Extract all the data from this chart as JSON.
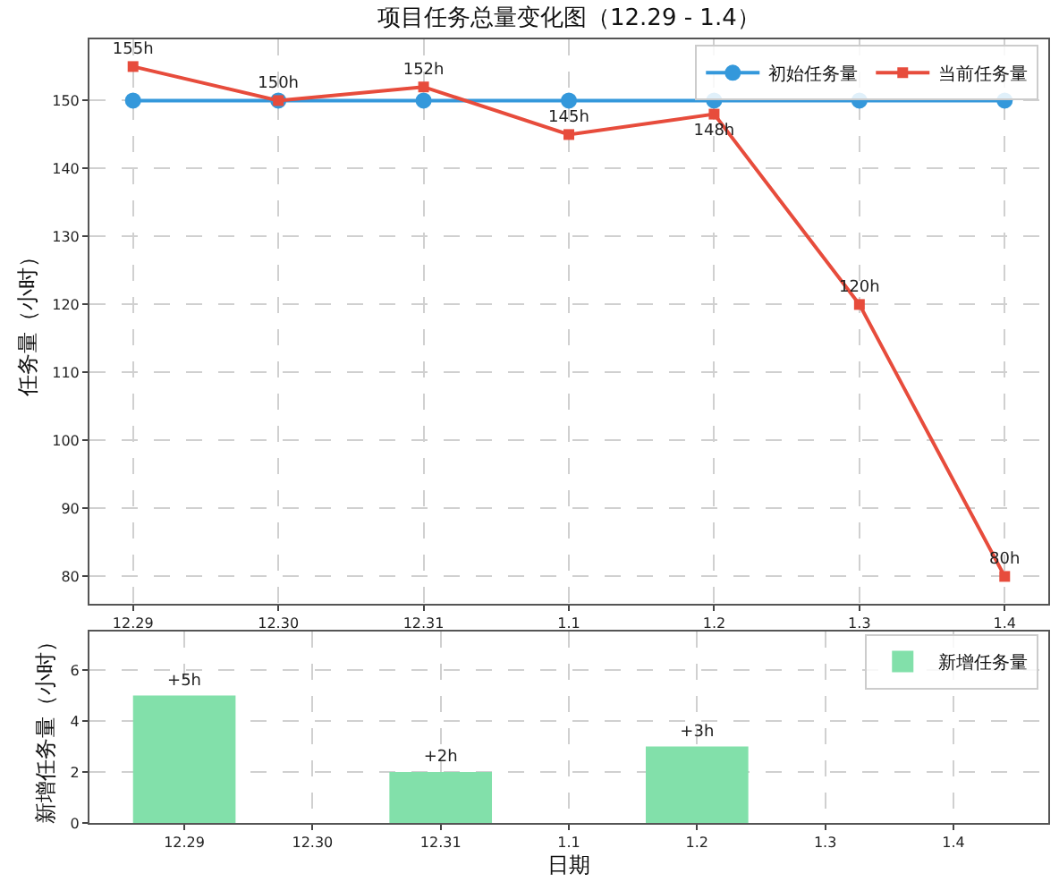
{
  "chart_data": [
    {
      "type": "line",
      "title": "项目任务总量变化图（12.29 - 1.4）",
      "ylabel": "任务量（小时）",
      "categories": [
        "12.29",
        "12.30",
        "12.31",
        "1.1",
        "1.2",
        "1.3",
        "1.4"
      ],
      "series": [
        {
          "name": "初始任务量",
          "color": "#3498db",
          "marker": "circle",
          "values": [
            150,
            150,
            150,
            150,
            150,
            150,
            150
          ]
        },
        {
          "name": "当前任务量",
          "color": "#e74c3c",
          "marker": "square",
          "values": [
            155,
            150,
            152,
            145,
            148,
            120,
            80
          ],
          "value_labels": [
            "155h",
            "150h",
            "152h",
            "145h",
            "148h",
            "120h",
            "80h"
          ]
        }
      ],
      "ylim": [
        76,
        159
      ],
      "yticks": [
        80,
        90,
        100,
        110,
        120,
        130,
        140,
        150
      ],
      "grid": true,
      "legend": "top right"
    },
    {
      "type": "bar",
      "xlabel": "日期",
      "ylabel": "新增任务量（小时）",
      "categories": [
        "12.29",
        "12.30",
        "12.31",
        "1.1",
        "1.2",
        "1.3",
        "1.4"
      ],
      "series": [
        {
          "name": "新增任务量",
          "color": "#82e0aa",
          "values": [
            5,
            0,
            2,
            0,
            3,
            0,
            0
          ],
          "value_labels": [
            "+5h",
            null,
            "+2h",
            null,
            "+3h",
            null,
            null
          ]
        }
      ],
      "ylim": [
        0,
        7.5
      ],
      "yticks": [
        0,
        2,
        4,
        6
      ],
      "grid": true,
      "legend": "top right"
    }
  ]
}
